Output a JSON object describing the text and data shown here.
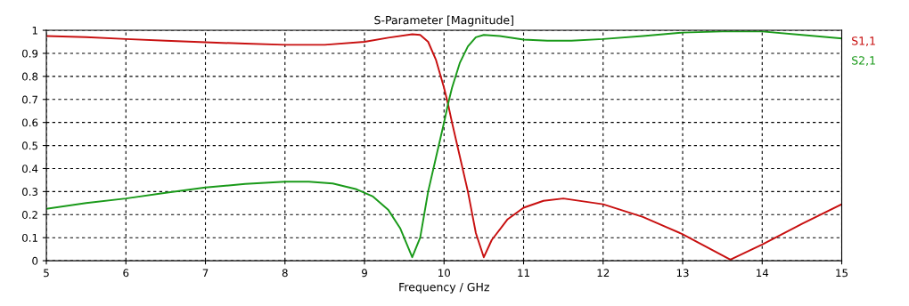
{
  "chart_data": {
    "type": "line",
    "title": "S-Parameter [Magnitude]",
    "xlabel": "Frequency / GHz",
    "xlim": [
      5,
      15
    ],
    "xticks": [
      5,
      6,
      7,
      8,
      9,
      10,
      11,
      12,
      13,
      14,
      15
    ],
    "ylim": [
      0,
      1
    ],
    "yticks": [
      0,
      0.1,
      0.2,
      0.3,
      0.4,
      0.5,
      0.6,
      0.7,
      0.8,
      0.9,
      1
    ],
    "grid": true,
    "legend": "right",
    "line_style": "solid",
    "series": [
      {
        "name": "S1,1",
        "color": "#c81010",
        "x": [
          5,
          5.5,
          6,
          6.5,
          7,
          7.5,
          8,
          8.5,
          9,
          9.3,
          9.6,
          9.7,
          9.8,
          9.9,
          10,
          10.05,
          10.1,
          10.2,
          10.3,
          10.4,
          10.5,
          10.6,
          10.8,
          11,
          11.25,
          11.5,
          12,
          12.5,
          13,
          13.3,
          13.6,
          14,
          14.5,
          15
        ],
        "values": [
          0.975,
          0.97,
          0.962,
          0.955,
          0.948,
          0.942,
          0.937,
          0.937,
          0.95,
          0.968,
          0.983,
          0.98,
          0.95,
          0.87,
          0.75,
          0.68,
          0.6,
          0.45,
          0.3,
          0.12,
          0.015,
          0.09,
          0.18,
          0.23,
          0.26,
          0.27,
          0.245,
          0.19,
          0.115,
          0.06,
          0.005,
          0.07,
          0.16,
          0.245
        ]
      },
      {
        "name": "S2,1",
        "color": "#1a9a1a",
        "x": [
          5,
          5.5,
          6,
          6.5,
          7,
          7.5,
          8,
          8.3,
          8.6,
          8.9,
          9.1,
          9.3,
          9.45,
          9.6,
          9.7,
          9.8,
          9.9,
          10,
          10.05,
          10.1,
          10.2,
          10.3,
          10.4,
          10.5,
          10.7,
          11,
          11.3,
          11.6,
          12,
          12.5,
          13,
          13.5,
          14,
          14.5,
          15
        ],
        "values": [
          0.225,
          0.25,
          0.27,
          0.295,
          0.318,
          0.333,
          0.343,
          0.343,
          0.335,
          0.31,
          0.28,
          0.22,
          0.14,
          0.015,
          0.1,
          0.3,
          0.45,
          0.6,
          0.68,
          0.75,
          0.86,
          0.93,
          0.97,
          0.98,
          0.975,
          0.96,
          0.955,
          0.955,
          0.962,
          0.975,
          0.99,
          0.995,
          0.995,
          0.98,
          0.965
        ]
      }
    ]
  }
}
